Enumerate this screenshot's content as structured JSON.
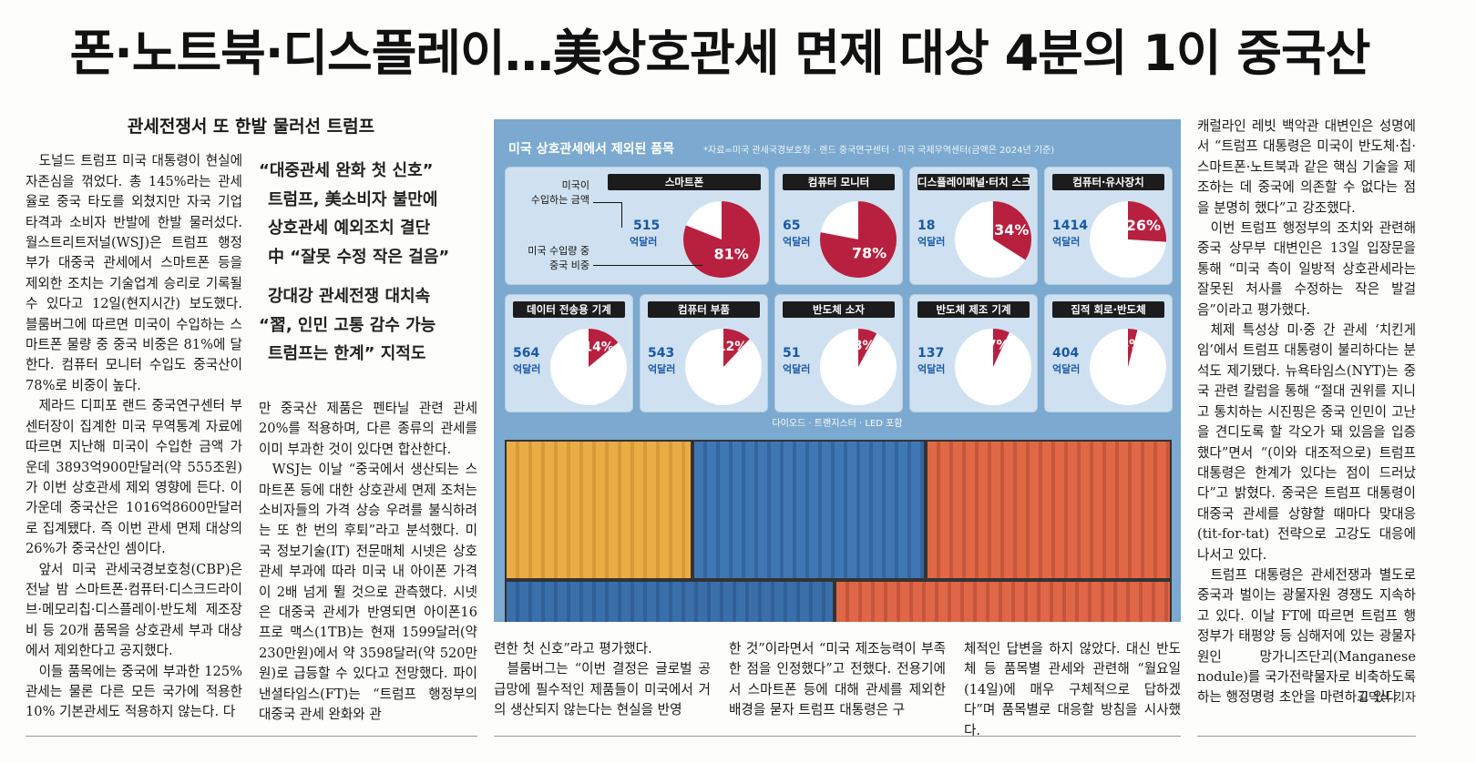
{
  "headline": "폰·노트북·디스플레이…美상호관세 면제 대상 4분의 1이 중국산",
  "subhead": "관세전쟁서 또 한발 물러선 트럼프",
  "deck": [
    "“대중관세 완화 첫 신호”",
    "트럼프, 美소비자 불만에",
    "상호관세 예외조치 결단",
    "中 “잘못 수정 작은 걸음”",
    "강대강 관세전쟁 대치속",
    "“習, 인민 고통 감수 가능",
    "트럼프는 한계” 지적도"
  ],
  "col1": [
    "도널드 트럼프 미국 대통령이 현실에 자존심을 꺾었다. 총 145%라는 관세율로 중국 타도를 외쳤지만 자국 기업 타격과 소비자 반발에 한발 물러섰다. 월스트리트저널(WSJ)은 트럼프 행정부가 대중국 관세에서 스마트폰 등을 제외한 조치는 기술업계 승리로 기록될 수 있다고 12일(현지시간) 보도했다. 블룸버그에 따르면 미국이 수입하는 스마트폰 물량 중 중국 비중은 81%에 달한다. 컴퓨터 모니터 수입도 중국산이 78%로 비중이 높다.",
    "제라드 디피포 랜드 중국연구센터 부센터장이 집계한 미국 무역통계 자료에 따르면 지난해 미국이 수입한 금액 가운데 3893억900만달러(약 555조원)가 이번 상호관세 제외 영향에 든다. 이 가운데 중국산은 1016억8600만달러로 집계됐다. 즉 이번 관세 면제 대상의 26%가 중국산인 셈이다.",
    "앞서 미국 관세국경보호청(CBP)은 전날 밤 스마트폰·컴퓨터·디스크드라이브·메모리칩·디스플레이·반도체 제조장비 등 20개 품목을 상호관세 부과 대상에서 제외한다고 공지했다.",
    "이들 품목에는 중국에 부과한 125% 관세는 물론 다른 모든 국가에 적용한 10% 기본관세도 적용하지 않는다. 다"
  ],
  "col2": [
    "만 중국산 제품은 펜타닐 관련 관세 20%를 적용하며, 다른 종류의 관세를 이미 부과한 것이 있다면 합산한다.",
    "WSJ는 이날 “중국에서 생산되는 스마트폰 등에 대한 상호관세 면제 조처는 소비자들의 가격 상승 우려를 불식하려는 또 한 번의 후퇴”라고 분석했다. 미국 정보기술(IT) 전문매체 시넷은 상호관세 부과에 따라 미국 내 아이폰 가격이 2배 넘게 뛸 것으로 관측했다. 시넷은 대중국 관세가 반영되면 아이폰16 프로 맥스(1TB)는 현재 1599달러(약 230만원)에서 약 3598달러(약 520만원)로 급등할 수 있다고 전망했다. 파이낸셜타임스(FT)는 “트럼프 행정부의 대중국 관세 완화와 관"
  ],
  "col3": [
    "련한 첫 신호”라고 평가했다.",
    "블룸버그는 “이번 결정은 글로벌 공급망에 필수적인 제품들이 미국에서 거의 생산되지 않는다는 현실을 반영"
  ],
  "col4": [
    "한 것”이라면서 “미국 제조능력이 부족한 점을 인정했다”고 전했다. 전용기에서 스마트폰 등에 대해 관세를 제외한 배경을 묻자 트럼프 대통령은 구"
  ],
  "col5": [
    "체적인 답변을 하지 않았다. 대신 반도체 등 품목별 관세와 관련해 “월요일(14일)에 매우 구체적으로 답하겠다”며 품목별로 대응할 방침을 시사했다."
  ],
  "col6": [
    "캐럴라인 레빗 백악관 대변인은 성명에서 “트럼프 대통령은 미국이 반도체·칩·스마트폰·노트북과 같은 핵심 기술을 제조하는 데 중국에 의존할 수 없다는 점을 분명히 했다”고 강조했다.",
    "이번 트럼프 행정부의 조치와 관련해 중국 상무부 대변인은 13일 입장문을 통해 “미국 측이 일방적 상호관세라는 잘못된 처사를 수정하는 작은 발걸음”이라고 평가했다.",
    "체제 특성상 미·중 간 관세 ‘치킨게임’에서 트럼프 대통령이 불리하다는 분석도 제기됐다. 뉴욕타임스(NYT)는 중국 관련 칼럼을 통해 “절대 권위를 지니고 통치하는 시진핑은 중국 인민이 고난을 견디도록 할 각오가 돼 있음을 입증했다”면서 “(이와 대조적으로) 트럼프 대통령은 한계가 있다는 점이 드러났다”고 밝혔다. 중국은 트럼프 대통령이 대중국 관세를 상향할 때마다 맞대응(tit-for-tat) 전략으로 고강도 대응에 나서고 있다.",
    "트럼프 대통령은 관세전쟁과 별도로 중국과 벌이는 광물자원 경쟁도 지속하고 있다. 이날 FT에 따르면 트럼프 행정부가 태평양 등 심해저에 있는 광물자원인 망가니즈단괴(Manganese nodule)를 국가전략물자로 비축하도록 하는 행정명령 초안을 마련하고 있다."
  ],
  "byline": "김덕식 기자",
  "graphic": {
    "title": "미국 상호관세에서 제외된 품목",
    "source": "*자료=미국 관세국경보호청 · 랜드 중국연구센터 · 미국 국제무역센터(금액은 2024년 기준)",
    "legend_amount": "미국이\n수입하는 금액",
    "legend_share": "미국 수입량 중\n중국 비중",
    "footnote": "다이오드 · 트랜지스터 · LED 포함",
    "unit": "억달러",
    "colors": {
      "pie_share": "#b8203f",
      "pie_rest": "#ffffff",
      "value_text": "#1a58a5"
    }
  },
  "chart_data": {
    "type": "pie",
    "title": "미국 상호관세에서 제외된 품목",
    "items": [
      {
        "label": "스마트폰",
        "amount": 515,
        "share": 81
      },
      {
        "label": "컴퓨터 모니터",
        "amount": 65,
        "share": 78
      },
      {
        "label": "디스플레이패널·터치 스크린",
        "amount": 18,
        "share": 34
      },
      {
        "label": "컴퓨터·유사장치",
        "amount": 1414,
        "share": 26
      },
      {
        "label": "데이터 전송용 기계",
        "amount": 564,
        "share": 14
      },
      {
        "label": "컴퓨터 부품",
        "amount": 543,
        "share": 12
      },
      {
        "label": "반도체 소자",
        "amount": 51,
        "share": 8
      },
      {
        "label": "반도체 제조 기계",
        "amount": 137,
        "share": 7
      },
      {
        "label": "집적 회로·반도체",
        "amount": 404,
        "share": 4
      }
    ]
  }
}
